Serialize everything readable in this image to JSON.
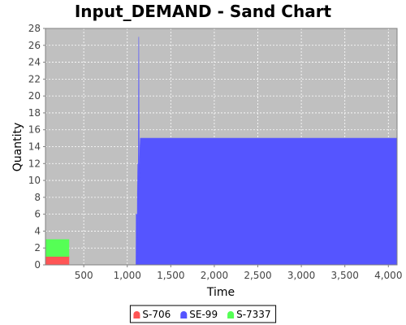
{
  "chart_data": {
    "type": "area",
    "title": "Input_DEMAND - Sand Chart",
    "xlabel": "Time",
    "ylabel": "Quantity",
    "xlim": [
      60,
      4100
    ],
    "ylim": [
      0,
      28
    ],
    "xticks": [
      500,
      1000,
      1500,
      2000,
      2500,
      3000,
      3500,
      4000
    ],
    "yticks": [
      0,
      2,
      4,
      6,
      8,
      10,
      12,
      14,
      16,
      18,
      20,
      22,
      24,
      26,
      28
    ],
    "xtick_labels": [
      "500",
      "1,000",
      "1,500",
      "2,000",
      "2,500",
      "3,000",
      "3,500",
      "4,000"
    ],
    "ytick_labels": [
      "0",
      "2",
      "4",
      "6",
      "8",
      "10",
      "12",
      "14",
      "16",
      "18",
      "20",
      "22",
      "24",
      "26",
      "28"
    ],
    "grid": true,
    "legend_placement": "bottom",
    "plot_background": "#c0c0c0",
    "series": [
      {
        "name": "S-706",
        "color": "#ff5555",
        "points": [
          [
            60,
            0
          ],
          [
            60,
            1
          ],
          [
            330,
            1
          ],
          [
            330,
            0
          ]
        ]
      },
      {
        "name": "SE-99",
        "color": "#5555ff",
        "points": [
          [
            1100,
            0
          ],
          [
            1102,
            6
          ],
          [
            1110,
            6
          ],
          [
            1112,
            0
          ],
          [
            1118,
            12
          ],
          [
            1124,
            3
          ],
          [
            1132,
            27
          ],
          [
            1138,
            9
          ],
          [
            1146,
            14
          ],
          [
            1150,
            15
          ],
          [
            4100,
            15
          ],
          [
            4100,
            0
          ]
        ]
      },
      {
        "name": "S-7337",
        "color": "#55ff55",
        "points": [
          [
            60,
            1
          ],
          [
            60,
            3
          ],
          [
            330,
            3
          ],
          [
            330,
            1
          ]
        ]
      }
    ]
  }
}
